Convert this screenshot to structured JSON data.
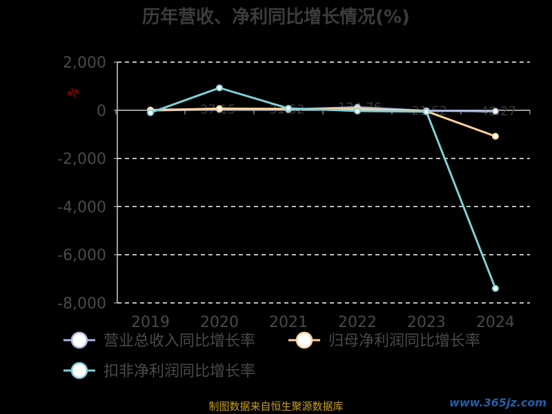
{
  "title": "历年营收、净利同比增长情况(%)",
  "source": "制图数据来自恒生聚源数据库",
  "watermark": "www.365jz.com",
  "colors": {
    "background": "#000000",
    "axis": "#cfcfcf",
    "grid": "#ffffff",
    "tick_text": "#4a4a4a",
    "legend_text": "#4a4a4a",
    "unit": "#cc0000"
  },
  "chart_data": {
    "type": "line",
    "title": "历年营收、净利同比增长情况(%)",
    "x": [
      "2019",
      "2020",
      "2021",
      "2022",
      "2023",
      "2024"
    ],
    "ylim": [
      -8000,
      2000
    ],
    "yticks": [
      2000,
      0,
      -2000,
      -4000,
      -6000,
      -8000
    ],
    "ytick_labels": [
      "2,000",
      "0",
      "-2,000",
      "-4,000",
      "-6,000",
      "-8,000"
    ],
    "ylabel": "%",
    "grid": true,
    "legend_position": "bottom-left",
    "series": [
      {
        "name": "营业总收入同比增长率",
        "color": "#a9b8e0",
        "values": [
          -10,
          37,
          32,
          124,
          -22,
          -40
        ],
        "labels": [
          "",
          "37.15",
          "31.52",
          "124.76",
          "-21.62",
          "-40.27"
        ]
      },
      {
        "name": "归母净利润同比增长率",
        "color": "#ffd39a",
        "values": [
          10,
          70,
          60,
          50,
          -40,
          -1080
        ]
      },
      {
        "name": "扣非净利润同比增长率",
        "color": "#80d0d8",
        "values": [
          -100,
          930,
          80,
          -30,
          -60,
          -7400
        ]
      }
    ]
  }
}
